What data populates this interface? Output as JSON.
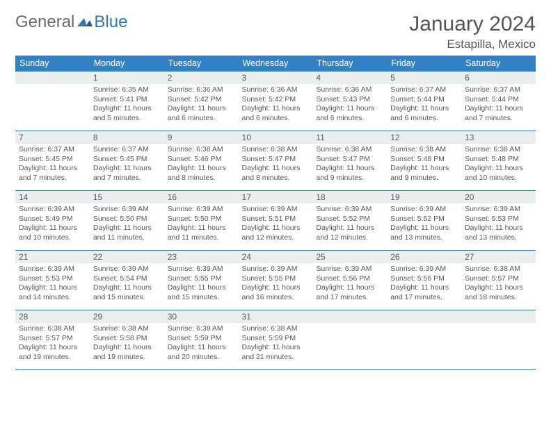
{
  "logo": {
    "part1": "General",
    "part2": "Blue"
  },
  "title": "January 2024",
  "location": "Estapilla, Mexico",
  "headerColor": "#3281c5",
  "ruleColor": "#3077b4",
  "dayHeaders": [
    "Sunday",
    "Monday",
    "Tuesday",
    "Wednesday",
    "Thursday",
    "Friday",
    "Saturday"
  ],
  "weeks": [
    [
      null,
      {
        "n": "1",
        "sr": "6:35 AM",
        "ss": "5:41 PM",
        "dl": "11 hours and 5 minutes."
      },
      {
        "n": "2",
        "sr": "6:36 AM",
        "ss": "5:42 PM",
        "dl": "11 hours and 6 minutes."
      },
      {
        "n": "3",
        "sr": "6:36 AM",
        "ss": "5:42 PM",
        "dl": "11 hours and 6 minutes."
      },
      {
        "n": "4",
        "sr": "6:36 AM",
        "ss": "5:43 PM",
        "dl": "11 hours and 6 minutes."
      },
      {
        "n": "5",
        "sr": "6:37 AM",
        "ss": "5:44 PM",
        "dl": "11 hours and 6 minutes."
      },
      {
        "n": "6",
        "sr": "6:37 AM",
        "ss": "5:44 PM",
        "dl": "11 hours and 7 minutes."
      }
    ],
    [
      {
        "n": "7",
        "sr": "6:37 AM",
        "ss": "5:45 PM",
        "dl": "11 hours and 7 minutes."
      },
      {
        "n": "8",
        "sr": "6:37 AM",
        "ss": "5:45 PM",
        "dl": "11 hours and 7 minutes."
      },
      {
        "n": "9",
        "sr": "6:38 AM",
        "ss": "5:46 PM",
        "dl": "11 hours and 8 minutes."
      },
      {
        "n": "10",
        "sr": "6:38 AM",
        "ss": "5:47 PM",
        "dl": "11 hours and 8 minutes."
      },
      {
        "n": "11",
        "sr": "6:38 AM",
        "ss": "5:47 PM",
        "dl": "11 hours and 9 minutes."
      },
      {
        "n": "12",
        "sr": "6:38 AM",
        "ss": "5:48 PM",
        "dl": "11 hours and 9 minutes."
      },
      {
        "n": "13",
        "sr": "6:38 AM",
        "ss": "5:48 PM",
        "dl": "11 hours and 10 minutes."
      }
    ],
    [
      {
        "n": "14",
        "sr": "6:39 AM",
        "ss": "5:49 PM",
        "dl": "11 hours and 10 minutes."
      },
      {
        "n": "15",
        "sr": "6:39 AM",
        "ss": "5:50 PM",
        "dl": "11 hours and 11 minutes."
      },
      {
        "n": "16",
        "sr": "6:39 AM",
        "ss": "5:50 PM",
        "dl": "11 hours and 11 minutes."
      },
      {
        "n": "17",
        "sr": "6:39 AM",
        "ss": "5:51 PM",
        "dl": "11 hours and 12 minutes."
      },
      {
        "n": "18",
        "sr": "6:39 AM",
        "ss": "5:52 PM",
        "dl": "11 hours and 12 minutes."
      },
      {
        "n": "19",
        "sr": "6:39 AM",
        "ss": "5:52 PM",
        "dl": "11 hours and 13 minutes."
      },
      {
        "n": "20",
        "sr": "6:39 AM",
        "ss": "5:53 PM",
        "dl": "11 hours and 13 minutes."
      }
    ],
    [
      {
        "n": "21",
        "sr": "6:39 AM",
        "ss": "5:53 PM",
        "dl": "11 hours and 14 minutes."
      },
      {
        "n": "22",
        "sr": "6:39 AM",
        "ss": "5:54 PM",
        "dl": "11 hours and 15 minutes."
      },
      {
        "n": "23",
        "sr": "6:39 AM",
        "ss": "5:55 PM",
        "dl": "11 hours and 15 minutes."
      },
      {
        "n": "24",
        "sr": "6:39 AM",
        "ss": "5:55 PM",
        "dl": "11 hours and 16 minutes."
      },
      {
        "n": "25",
        "sr": "6:39 AM",
        "ss": "5:56 PM",
        "dl": "11 hours and 17 minutes."
      },
      {
        "n": "26",
        "sr": "6:39 AM",
        "ss": "5:56 PM",
        "dl": "11 hours and 17 minutes."
      },
      {
        "n": "27",
        "sr": "6:38 AM",
        "ss": "5:57 PM",
        "dl": "11 hours and 18 minutes."
      }
    ],
    [
      {
        "n": "28",
        "sr": "6:38 AM",
        "ss": "5:57 PM",
        "dl": "11 hours and 19 minutes."
      },
      {
        "n": "29",
        "sr": "6:38 AM",
        "ss": "5:58 PM",
        "dl": "11 hours and 19 minutes."
      },
      {
        "n": "30",
        "sr": "6:38 AM",
        "ss": "5:59 PM",
        "dl": "11 hours and 20 minutes."
      },
      {
        "n": "31",
        "sr": "6:38 AM",
        "ss": "5:59 PM",
        "dl": "11 hours and 21 minutes."
      },
      null,
      null,
      null
    ]
  ],
  "labels": {
    "sunrise": "Sunrise:",
    "sunset": "Sunset:",
    "daylight": "Daylight:"
  }
}
